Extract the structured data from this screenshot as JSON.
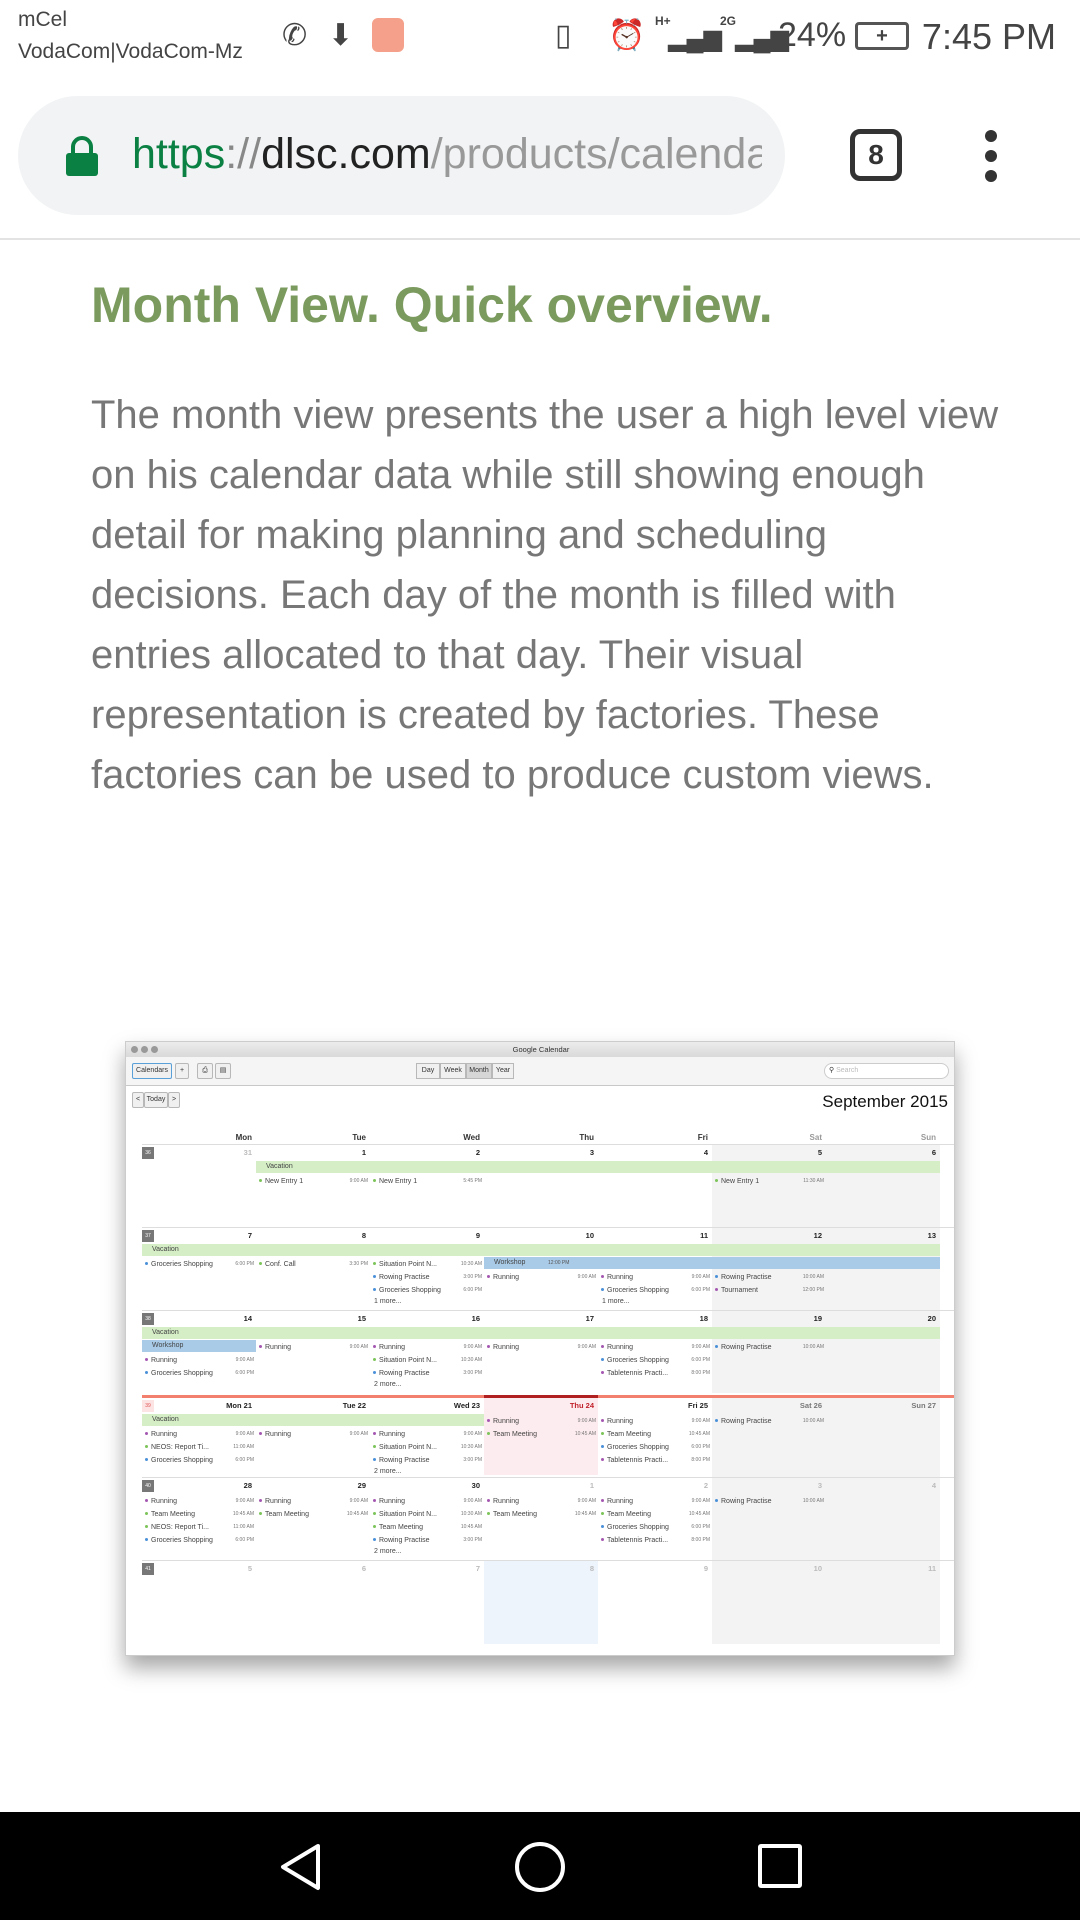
{
  "status": {
    "carrier1": "mCel",
    "carrier2": "VodaCom|VodaCom-Mz",
    "network1": "H+",
    "network2": "2G",
    "battery": "24%",
    "time": "7:45 PM",
    "icons": [
      "whatsapp-icon",
      "download-icon",
      "inbox-app-icon",
      "vibrate-icon",
      "alarm-icon",
      "signal-icon",
      "signal-icon",
      "battery-charging-icon"
    ]
  },
  "browser": {
    "url_scheme": "https",
    "url_sep": "://",
    "url_host": "dlsc.com",
    "url_path": "/products/calenda",
    "tab_count": "8"
  },
  "article": {
    "heading": "Month View. Quick overview.",
    "paragraph": "The month view presents the user a high level view on his calendar data while still showing enough detail for making planning and scheduling decisions. Each day of the month is filled with entries allocated to that day. Their visual representation is created by factories. These factories can be used to produce custom views."
  },
  "calendar": {
    "window_title": "Google Calendar",
    "toolbar": {
      "calendars": "Calendars",
      "add": "+",
      "views": [
        "Day",
        "Week",
        "Month",
        "Year"
      ],
      "active_view": "Month",
      "search_placeholder": "Search"
    },
    "nav": {
      "prev": "<",
      "today": "Today",
      "next": ">"
    },
    "month_title": "September 2015",
    "weekdays": [
      "Mon",
      "Tue",
      "Wed",
      "Thu",
      "Fri",
      "Sat",
      "Sun"
    ],
    "colors": {
      "green": "#7dc45a",
      "blue": "#4a90d9",
      "purple": "#a457b0",
      "vacation": "#d5eec6",
      "workshop": "#a9cbe8",
      "today": "#fdecef",
      "weekend": "#f3f3f3",
      "current_week_line": "#f3806f"
    },
    "weeks": [
      {
        "number": "36",
        "days": [
          "31",
          "1",
          "2",
          "3",
          "4",
          "5",
          "6"
        ],
        "other": [
          0
        ],
        "spans": [
          {
            "label": "Vacation",
            "from": 1,
            "to": 6,
            "color": "vacation"
          }
        ],
        "entries": [
          [],
          [
            {
              "t": "New Entry 1",
              "time": "9:00 AM",
              "c": "green"
            }
          ],
          [
            {
              "t": "New Entry 1",
              "time": "5:45 PM",
              "c": "green"
            }
          ],
          [],
          [],
          [
            {
              "t": "New Entry 1",
              "time": "11:30 AM",
              "c": "green"
            }
          ],
          []
        ],
        "more": [
          "",
          "",
          "",
          "",
          "",
          "",
          ""
        ]
      },
      {
        "number": "37",
        "days": [
          "7",
          "8",
          "9",
          "10",
          "11",
          "12",
          "13"
        ],
        "other": [],
        "spans": [
          {
            "label": "Vacation",
            "from": 0,
            "to": 6,
            "color": "vacation"
          },
          {
            "label": "Workshop",
            "time": "12:00 PM",
            "from": 3,
            "to": 6,
            "color": "workshop"
          }
        ],
        "entries": [
          [
            {
              "t": "Groceries Shopping",
              "time": "6:00 PM",
              "c": "blue"
            }
          ],
          [
            {
              "t": "Conf. Call",
              "time": "3:30 PM",
              "c": "green"
            }
          ],
          [
            {
              "t": "Situation Point N...",
              "time": "10:30 AM",
              "c": "green"
            },
            {
              "t": "Rowing Practise",
              "time": "3:00 PM",
              "c": "blue"
            },
            {
              "t": "Groceries Shopping",
              "time": "6:00 PM",
              "c": "blue"
            }
          ],
          [
            {
              "t": "Running",
              "time": "9:00 AM",
              "c": "purple"
            }
          ],
          [
            {
              "t": "Running",
              "time": "9:00 AM",
              "c": "purple"
            },
            {
              "t": "Groceries Shopping",
              "time": "6:00 PM",
              "c": "blue"
            }
          ],
          [
            {
              "t": "Rowing Practise",
              "time": "10:00 AM",
              "c": "blue"
            },
            {
              "t": "Tournament",
              "time": "12:00 PM",
              "c": "purple"
            }
          ],
          []
        ],
        "more": [
          "",
          "",
          "1 more...",
          "",
          "1 more...",
          "",
          ""
        ]
      },
      {
        "number": "38",
        "days": [
          "14",
          "15",
          "16",
          "17",
          "18",
          "19",
          "20"
        ],
        "other": [],
        "spans": [
          {
            "label": "Vacation",
            "from": 0,
            "to": 6,
            "color": "vacation"
          },
          {
            "label": "Workshop",
            "from": 0,
            "to": 0,
            "color": "workshop"
          }
        ],
        "entries": [
          [
            {
              "t": "Running",
              "time": "9:00 AM",
              "c": "purple"
            },
            {
              "t": "Groceries Shopping",
              "time": "6:00 PM",
              "c": "blue"
            }
          ],
          [
            {
              "t": "Running",
              "time": "9:00 AM",
              "c": "purple"
            }
          ],
          [
            {
              "t": "Running",
              "time": "9:00 AM",
              "c": "purple"
            },
            {
              "t": "Situation Point N...",
              "time": "10:30 AM",
              "c": "green"
            },
            {
              "t": "Rowing Practise",
              "time": "3:00 PM",
              "c": "blue"
            }
          ],
          [
            {
              "t": "Running",
              "time": "9:00 AM",
              "c": "purple"
            }
          ],
          [
            {
              "t": "Running",
              "time": "9:00 AM",
              "c": "purple"
            },
            {
              "t": "Groceries Shopping",
              "time": "6:00 PM",
              "c": "blue"
            },
            {
              "t": "Tabletennis Practi...",
              "time": "8:00 PM",
              "c": "purple"
            }
          ],
          [
            {
              "t": "Rowing Practise",
              "time": "10:00 AM",
              "c": "blue"
            }
          ],
          []
        ],
        "more": [
          "",
          "",
          "2 more...",
          "",
          "",
          "",
          ""
        ]
      },
      {
        "number": "39",
        "current": true,
        "today": 3,
        "days": [
          "Mon 21",
          "Tue 22",
          "Wed 23",
          "Thu 24",
          "Fri 25",
          "Sat 26",
          "Sun 27"
        ],
        "other": [],
        "spans": [
          {
            "label": "Vacation",
            "from": 0,
            "to": 2,
            "color": "vacation"
          }
        ],
        "entries": [
          [
            {
              "t": "Running",
              "time": "9:00 AM",
              "c": "purple"
            },
            {
              "t": "NEOS: Report Ti...",
              "time": "11:00 AM",
              "c": "green"
            },
            {
              "t": "Groceries Shopping",
              "time": "6:00 PM",
              "c": "blue"
            }
          ],
          [
            {
              "t": "Running",
              "time": "9:00 AM",
              "c": "purple"
            }
          ],
          [
            {
              "t": "Running",
              "time": "9:00 AM",
              "c": "purple"
            },
            {
              "t": "Situation Point N...",
              "time": "10:30 AM",
              "c": "green"
            },
            {
              "t": "Rowing Practise",
              "time": "3:00 PM",
              "c": "blue"
            }
          ],
          [
            {
              "t": "Running",
              "time": "9:00 AM",
              "c": "purple"
            },
            {
              "t": "Team Meeting",
              "time": "10:45 AM",
              "c": "green"
            }
          ],
          [
            {
              "t": "Running",
              "time": "9:00 AM",
              "c": "purple"
            },
            {
              "t": "Team Meeting",
              "time": "10:45 AM",
              "c": "green"
            },
            {
              "t": "Groceries Shopping",
              "time": "6:00 PM",
              "c": "blue"
            },
            {
              "t": "Tabletennis Practi...",
              "time": "8:00 PM",
              "c": "purple"
            }
          ],
          [
            {
              "t": "Rowing Practise",
              "time": "10:00 AM",
              "c": "blue"
            }
          ],
          []
        ],
        "more": [
          "",
          "",
          "2 more...",
          "",
          "",
          "",
          ""
        ]
      },
      {
        "number": "40",
        "days": [
          "28",
          "29",
          "30",
          "1",
          "2",
          "3",
          "4"
        ],
        "other": [
          3,
          4,
          5,
          6
        ],
        "spans": [],
        "entries": [
          [
            {
              "t": "Running",
              "time": "9:00 AM",
              "c": "purple"
            },
            {
              "t": "Team Meeting",
              "time": "10:45 AM",
              "c": "green"
            },
            {
              "t": "NEOS: Report Ti...",
              "time": "11:00 AM",
              "c": "green"
            },
            {
              "t": "Groceries Shopping",
              "time": "6:00 PM",
              "c": "blue"
            }
          ],
          [
            {
              "t": "Running",
              "time": "9:00 AM",
              "c": "purple"
            },
            {
              "t": "Team Meeting",
              "time": "10:45 AM",
              "c": "green"
            }
          ],
          [
            {
              "t": "Running",
              "time": "9:00 AM",
              "c": "purple"
            },
            {
              "t": "Situation Point N...",
              "time": "10:30 AM",
              "c": "green"
            },
            {
              "t": "Team Meeting",
              "time": "10:45 AM",
              "c": "green"
            },
            {
              "t": "Rowing Practise",
              "time": "3:00 PM",
              "c": "blue"
            }
          ],
          [
            {
              "t": "Running",
              "time": "9:00 AM",
              "c": "purple"
            },
            {
              "t": "Team Meeting",
              "time": "10:45 AM",
              "c": "green"
            }
          ],
          [
            {
              "t": "Running",
              "time": "9:00 AM",
              "c": "purple"
            },
            {
              "t": "Team Meeting",
              "time": "10:45 AM",
              "c": "green"
            },
            {
              "t": "Groceries Shopping",
              "time": "6:00 PM",
              "c": "blue"
            },
            {
              "t": "Tabletennis Practi...",
              "time": "8:00 PM",
              "c": "purple"
            }
          ],
          [
            {
              "t": "Rowing Practise",
              "time": "10:00 AM",
              "c": "blue"
            }
          ],
          []
        ],
        "more": [
          "",
          "",
          "2 more...",
          "",
          "",
          "",
          ""
        ]
      },
      {
        "number": "41",
        "days": [
          "5",
          "6",
          "7",
          "8",
          "9",
          "10",
          "11"
        ],
        "other": [
          0,
          1,
          2,
          3,
          4,
          5,
          6
        ],
        "highlight": 3,
        "spans": [],
        "entries": [
          [],
          [],
          [],
          [],
          [],
          [],
          []
        ],
        "more": [
          "",
          "",
          "",
          "",
          "",
          "",
          ""
        ]
      }
    ]
  },
  "navbar": {
    "icons": [
      "back-icon",
      "home-icon",
      "recents-icon"
    ]
  }
}
